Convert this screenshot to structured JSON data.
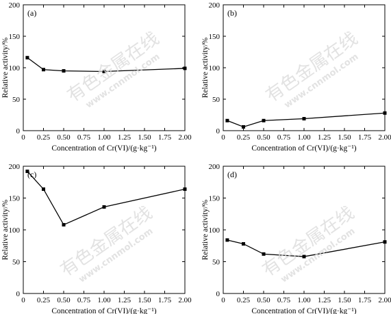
{
  "chart_data": [
    {
      "type": "line",
      "panel_label": "(a)",
      "xlabel": "Concentration of Cr(VI)/(g·kg⁻¹)",
      "ylabel": "Relative activity/%",
      "xlim": [
        0,
        2.0
      ],
      "ylim": [
        0,
        200
      ],
      "xticks": [
        "0",
        "0.25",
        "0.50",
        "0.75",
        "1.00",
        "1.25",
        "1.50",
        "1.75",
        "2.00"
      ],
      "yticks": [
        "0",
        "50",
        "100",
        "150",
        "200"
      ],
      "x": [
        0.05,
        0.25,
        0.5,
        1.0,
        2.0
      ],
      "y": [
        116,
        97,
        95,
        94,
        99
      ]
    },
    {
      "type": "line",
      "panel_label": "(b)",
      "xlabel": "Concentration of Cr(VI)/(g·kg⁻¹)",
      "ylabel": "Relative activity/%",
      "xlim": [
        0,
        2.0
      ],
      "ylim": [
        0,
        200
      ],
      "xticks": [
        "0",
        "0.25",
        "0.50",
        "0.75",
        "1.00",
        "1.25",
        "1.50",
        "1.75",
        "2.00"
      ],
      "yticks": [
        "0",
        "50",
        "100",
        "150",
        "200"
      ],
      "x": [
        0.05,
        0.25,
        0.5,
        1.0,
        2.0
      ],
      "y": [
        16,
        6,
        16,
        19,
        28
      ]
    },
    {
      "type": "line",
      "panel_label": "(c)",
      "xlabel": "Concentration of Cr(VI)/(g·kg⁻¹)",
      "ylabel": "Relative activity/%",
      "xlim": [
        0,
        2.0
      ],
      "ylim": [
        0,
        200
      ],
      "xticks": [
        "0",
        "0.25",
        "0.50",
        "0.75",
        "1.00",
        "1.25",
        "1.50",
        "1.75",
        "2.00"
      ],
      "yticks": [
        "0",
        "50",
        "100",
        "150",
        "200"
      ],
      "x": [
        0.05,
        0.25,
        0.5,
        1.0,
        2.0
      ],
      "y": [
        192,
        164,
        108,
        136,
        164
      ]
    },
    {
      "type": "line",
      "panel_label": "(d)",
      "xlabel": "Concentration of Cr(VI)/(g·kg⁻¹)",
      "ylabel": "Relative activity/%",
      "xlim": [
        0,
        2.0
      ],
      "ylim": [
        0,
        200
      ],
      "xticks": [
        "0",
        "0.25",
        "0.50",
        "0.75",
        "1.00",
        "1.25",
        "1.50",
        "1.75",
        "2.00"
      ],
      "yticks": [
        "0",
        "50",
        "100",
        "150",
        "200"
      ],
      "x": [
        0.05,
        0.25,
        0.5,
        1.0,
        2.0
      ],
      "y": [
        84,
        78,
        62,
        58,
        81
      ]
    }
  ],
  "watermark": {
    "chinese": "有色金属在线",
    "url": "www.cnnmol.com",
    "color": "#d9d9d9"
  }
}
